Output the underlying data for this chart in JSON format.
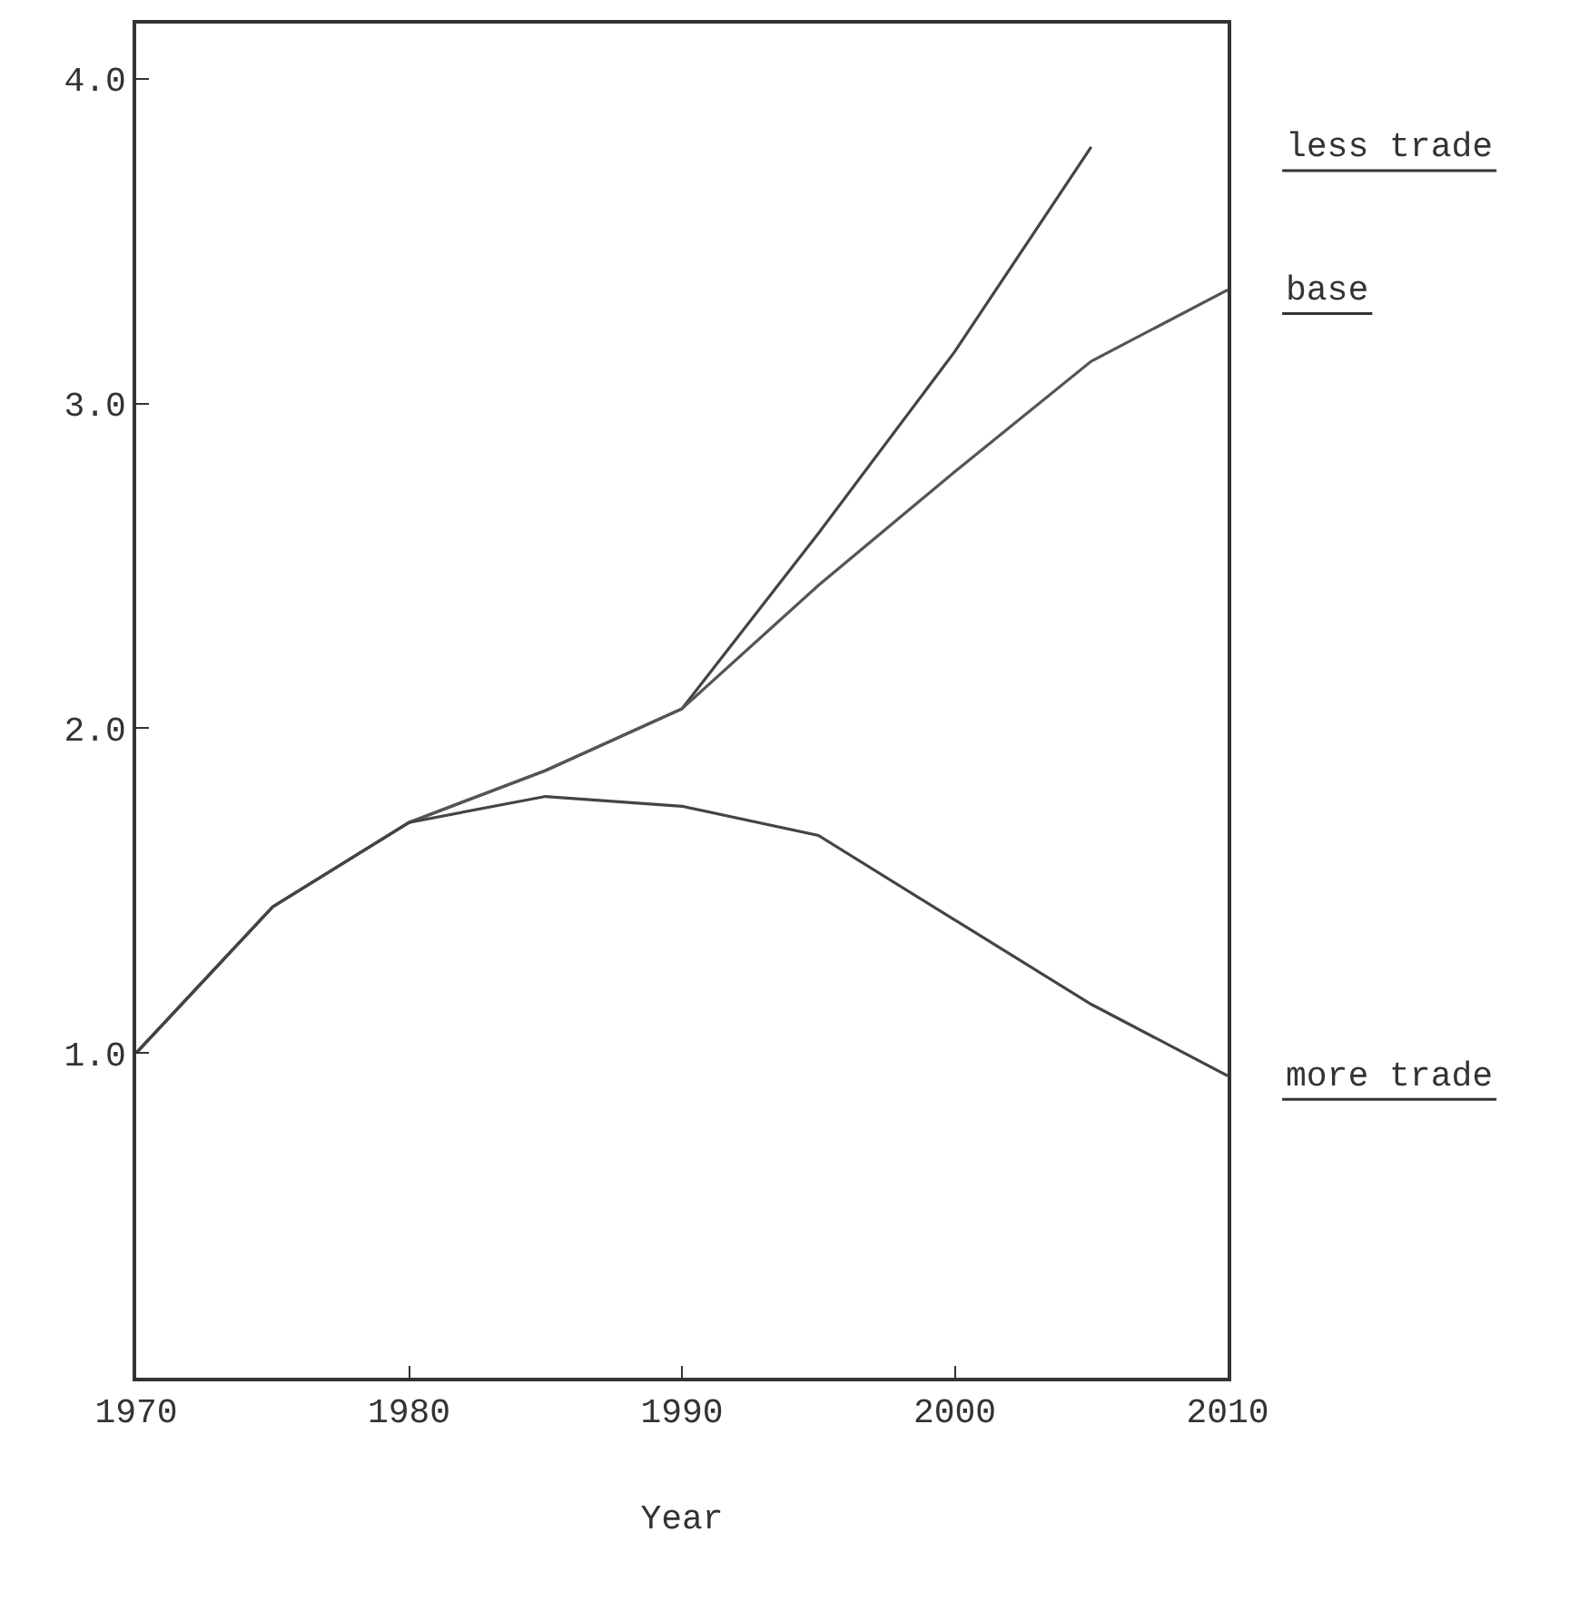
{
  "chart_data": {
    "type": "line",
    "xlabel": "Year",
    "x": [
      1970,
      1975,
      1980,
      1985,
      1990,
      1995,
      2000,
      2005,
      2010
    ],
    "series": [
      {
        "name": "less trade",
        "color": "#444444",
        "x": [
          1970,
          1975,
          1980,
          1985,
          1990,
          1995,
          2000,
          2005
        ],
        "values": [
          1.0,
          1.45,
          1.71,
          1.87,
          2.06,
          2.6,
          3.16,
          3.79
        ]
      },
      {
        "name": "base",
        "color": "#555555",
        "values": [
          1.0,
          1.45,
          1.71,
          1.87,
          2.06,
          2.44,
          2.79,
          3.13,
          3.35
        ]
      },
      {
        "name": "more trade",
        "color": "#444444",
        "values": [
          1.0,
          1.45,
          1.71,
          1.79,
          1.76,
          1.67,
          1.41,
          1.15,
          0.93
        ]
      }
    ],
    "xlim": [
      1970,
      2010
    ],
    "xticks": [
      1970,
      1980,
      1990,
      2000,
      2010
    ],
    "ylim": [
      0,
      4.17
    ],
    "yticks": [
      {
        "value": 1,
        "label": "1.0"
      },
      {
        "value": 2,
        "label": "2.0"
      },
      {
        "value": 3,
        "label": "3.0"
      },
      {
        "value": 4,
        "label": "4.0"
      }
    ],
    "grid": false,
    "legend": false,
    "marker": "none",
    "line_style": "solid"
  }
}
